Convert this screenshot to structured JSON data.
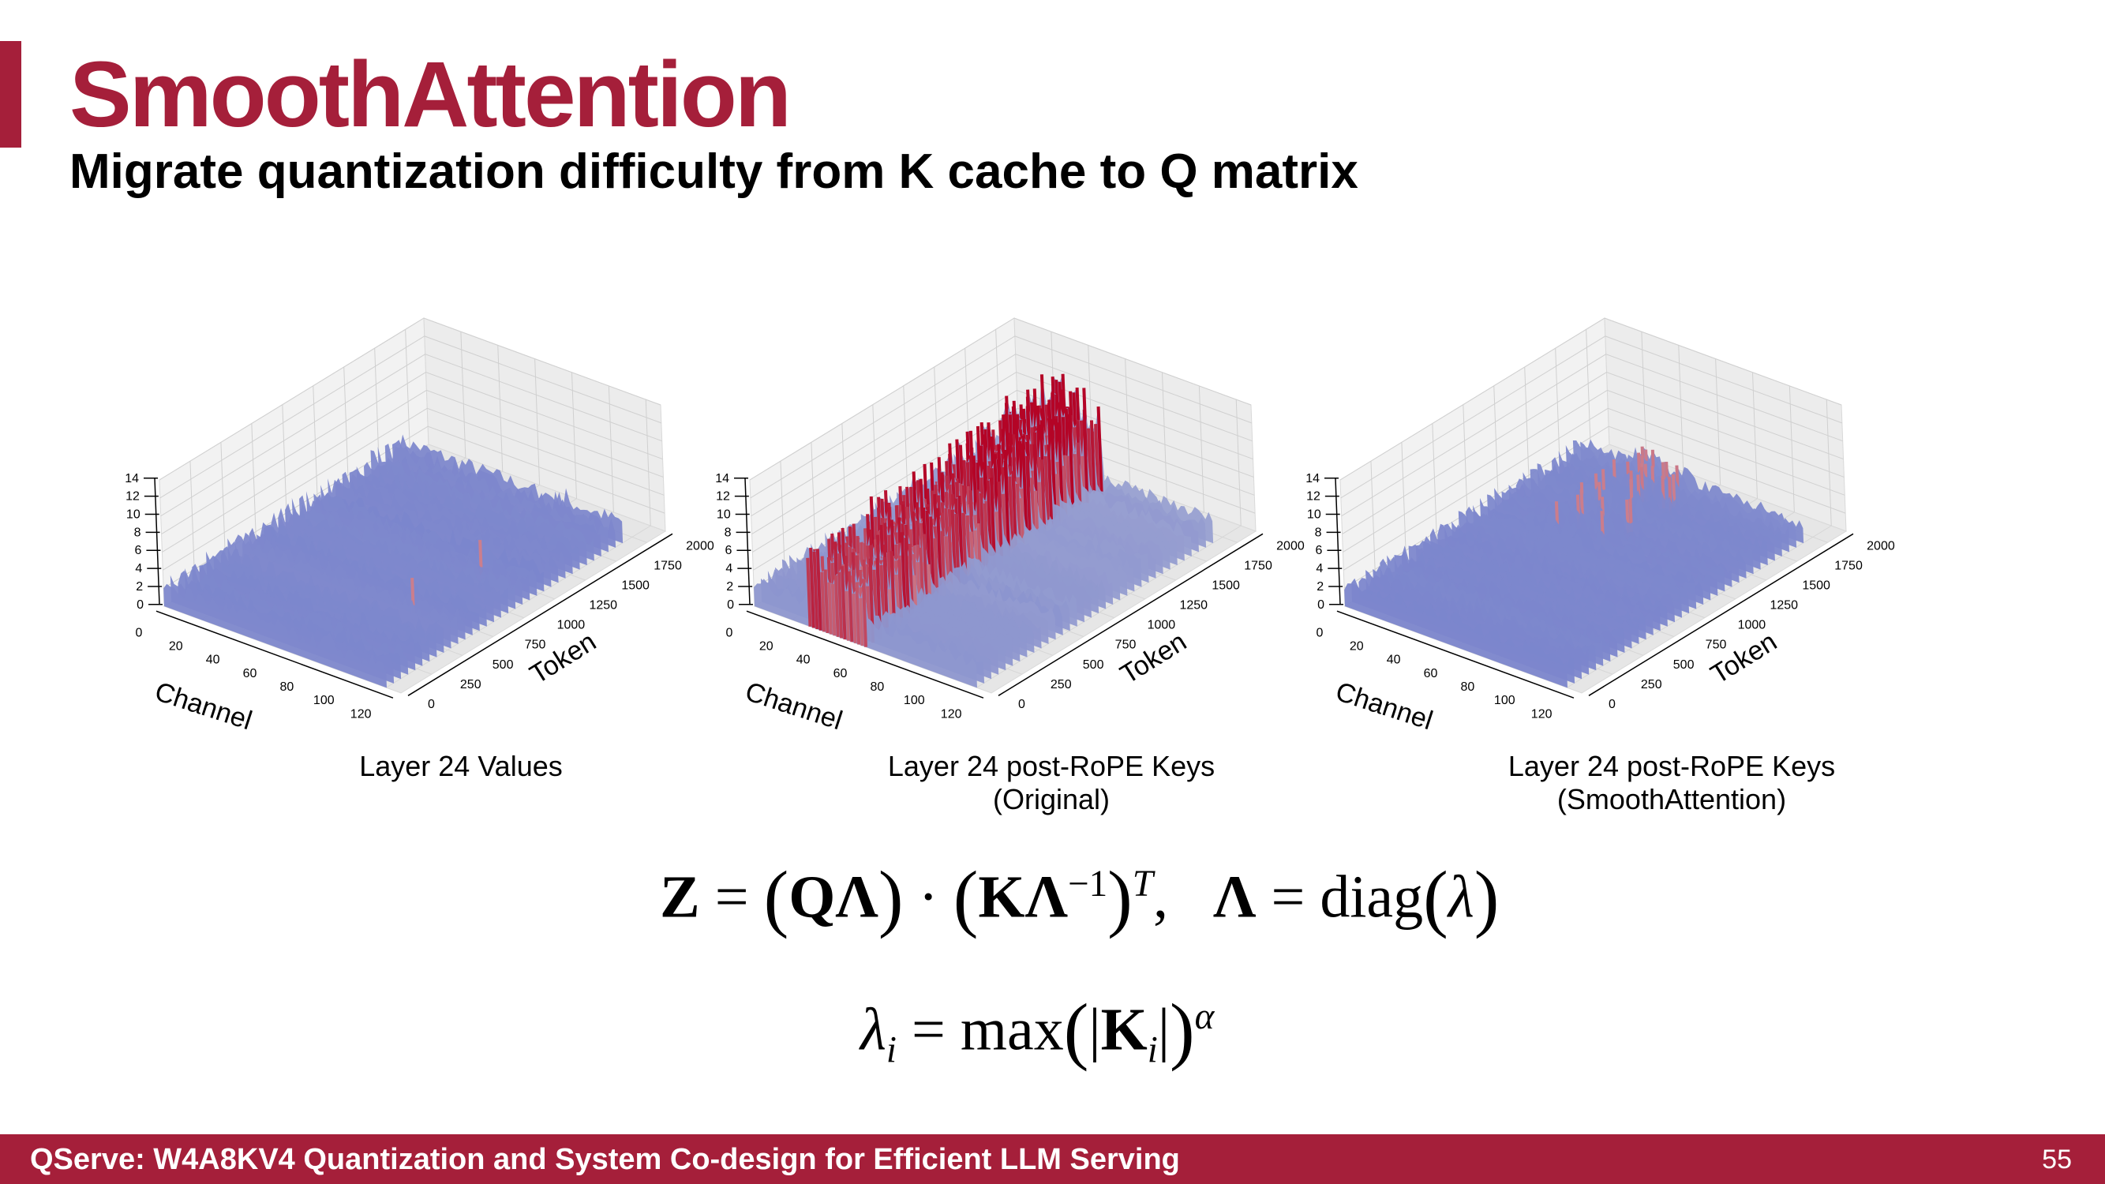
{
  "slide": {
    "title": "SmoothAttention",
    "subtitle": "Migrate quantization difficulty from K cache to Q matrix",
    "footer": "QServe: W4A8KV4 Quantization and System Co-design for Efficient LLM Serving",
    "page_number": "55",
    "colors": {
      "accent": "#a51f3a",
      "low": "#4a6fe3",
      "high": "#c1282d"
    }
  },
  "captions": [
    {
      "line1": "Layer 24 Values",
      "line2": ""
    },
    {
      "line1": "Layer 24 post-RoPE Keys",
      "line2": "(Original)"
    },
    {
      "line1": "Layer 24 post-RoPE Keys",
      "line2": "(SmoothAttention)"
    }
  ],
  "equations": {
    "eq1": "Z = (QΛ) · (KΛ⁻¹)ᵀ,   Λ = diag(λ)",
    "eq2": "λᵢ = max(|Kᵢ|)^α"
  },
  "chart_data": [
    {
      "type": "surface",
      "title": "Layer 24 Values",
      "xlabel": "Channel",
      "ylabel": "Token",
      "zlabel": "",
      "x_ticks": [
        "0",
        "20",
        "40",
        "60",
        "80",
        "100",
        "120"
      ],
      "y_ticks": [
        "0",
        "250",
        "500",
        "750",
        "1000",
        "1250",
        "1500",
        "1750",
        "2000"
      ],
      "z_ticks": [
        "0",
        "2",
        "4",
        "6",
        "8",
        "10",
        "12",
        "14"
      ],
      "xlim": [
        0,
        128
      ],
      "ylim": [
        0,
        2048
      ],
      "zlim": [
        0,
        14
      ],
      "profile": {
        "base": 1.5,
        "noise": 1.8,
        "outliers": [
          {
            "channel": 95,
            "height": 4
          },
          {
            "channel": 74,
            "height": 3
          }
        ]
      }
    },
    {
      "type": "surface",
      "title": "Layer 24 post-RoPE Keys (Original)",
      "xlabel": "Channel",
      "ylabel": "Token",
      "zlabel": "",
      "x_ticks": [
        "0",
        "20",
        "40",
        "60",
        "80",
        "100",
        "120"
      ],
      "y_ticks": [
        "0",
        "250",
        "500",
        "750",
        "1000",
        "1250",
        "1500",
        "1750",
        "2000"
      ],
      "z_ticks": [
        "0",
        "2",
        "4",
        "6",
        "8",
        "10",
        "12",
        "14"
      ],
      "xlim": [
        0,
        128
      ],
      "ylim": [
        0,
        2048
      ],
      "zlim": [
        0,
        14
      ],
      "profile": {
        "base": 2.0,
        "noise": 1.5,
        "outlier_band": [
          32,
          64
        ],
        "outlier_height": 13
      }
    },
    {
      "type": "surface",
      "title": "Layer 24 post-RoPE Keys (SmoothAttention)",
      "xlabel": "Channel",
      "ylabel": "Token",
      "zlabel": "",
      "x_ticks": [
        "0",
        "20",
        "40",
        "60",
        "80",
        "100",
        "120"
      ],
      "y_ticks": [
        "0",
        "250",
        "500",
        "750",
        "1000",
        "1250",
        "1500",
        "1750",
        "2000"
      ],
      "z_ticks": [
        "0",
        "2",
        "4",
        "6",
        "8",
        "10",
        "12",
        "14"
      ],
      "xlim": [
        0,
        128
      ],
      "ylim": [
        0,
        2048
      ],
      "zlim": [
        0,
        14
      ],
      "profile": {
        "base": 1.5,
        "noise": 1.5,
        "outlier_band": [
          32,
          64
        ],
        "outlier_height": 4.5
      }
    }
  ]
}
